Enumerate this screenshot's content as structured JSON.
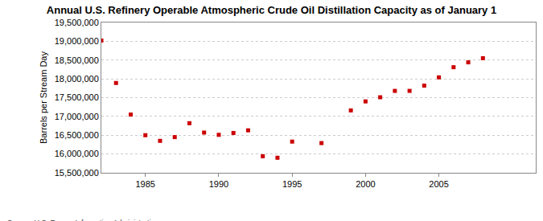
{
  "chart_data": {
    "type": "scatter",
    "title": "Annual U.S. Refinery Operable Atmospheric Crude Oil Distillation Capacity as of January 1",
    "y_label": "Barrels per Stream Day",
    "annotations": [
      "Source: U.S. Energy Information Administration"
    ],
    "x": [
      1982,
      1983,
      1984,
      1985,
      1986,
      1987,
      1988,
      1989,
      1990,
      1991,
      1992,
      1993,
      1994,
      1995,
      1997,
      1999,
      2000,
      2001,
      2002,
      2003,
      2004,
      2005,
      2006,
      2007,
      2008
    ],
    "values": [
      19020000,
      17890000,
      17050000,
      16500000,
      16350000,
      16450000,
      16820000,
      16570000,
      16510000,
      16560000,
      16630000,
      15940000,
      15900000,
      16330000,
      16290000,
      17160000,
      17400000,
      17510000,
      17680000,
      17680000,
      17820000,
      18040000,
      18310000,
      18440000,
      18550000
    ],
    "color": "#cc0000",
    "marker": "square",
    "xlim": [
      1982,
      2011.6
    ],
    "xticks": [
      1985,
      1990,
      1995,
      2000,
      2005
    ],
    "ylim": [
      15500000,
      19500000
    ],
    "yticks": [
      {
        "value": 15500000,
        "label": "15,500,000"
      },
      {
        "value": 16000000,
        "label": "16,000,000"
      },
      {
        "value": 16500000,
        "label": "16,500,000"
      },
      {
        "value": 17000000,
        "label": "17,000,000"
      },
      {
        "value": 17500000,
        "label": "17,500,000"
      },
      {
        "value": 18000000,
        "label": "18,000,000"
      },
      {
        "value": 18500000,
        "label": "18,500,000"
      },
      {
        "value": 19000000,
        "label": "19,000,000"
      },
      {
        "value": 19500000,
        "label": "19,500,000"
      }
    ],
    "grid": true
  }
}
